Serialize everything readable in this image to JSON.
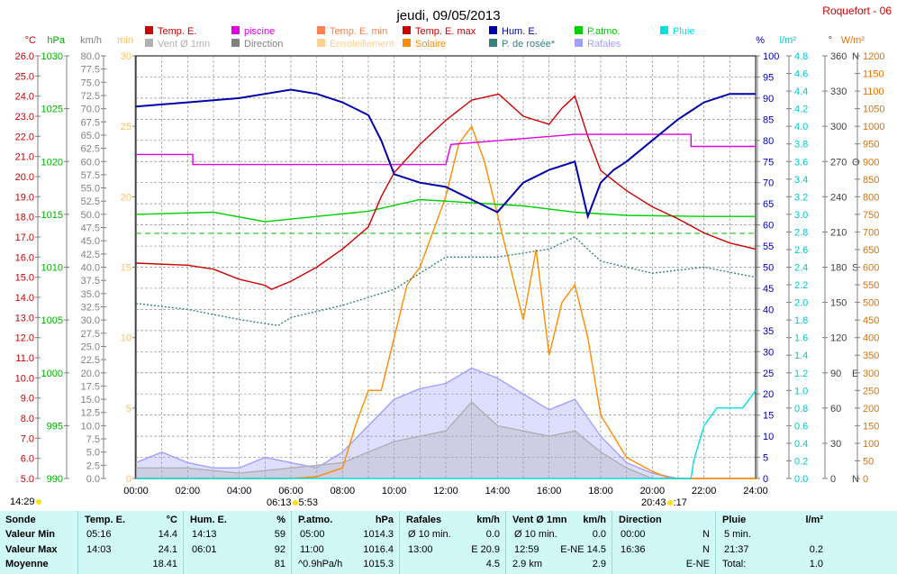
{
  "station": "Roquefort - 06",
  "chart_data": {
    "type": "line",
    "title": "jeudi, 09/05/2013",
    "x_ticks": [
      "00:00",
      "02:00",
      "04:00",
      "06:00",
      "08:00",
      "10:00",
      "12:00",
      "14:00",
      "16:00",
      "18:00",
      "20:00",
      "22:00",
      "24:00"
    ],
    "xlim": [
      0,
      24
    ],
    "grid": true,
    "legend_position": "top",
    "legend": [
      {
        "name": "Temp. E.",
        "color": "#cc0000"
      },
      {
        "name": "piscine",
        "color": "#e000e0"
      },
      {
        "name": "Temp. E. min",
        "color": "#ff7f50"
      },
      {
        "name": "Temp. E. max",
        "color": "#cc0000"
      },
      {
        "name": "Hum. E.",
        "color": "#0000aa"
      },
      {
        "name": "P.atmo.",
        "color": "#00d000"
      },
      {
        "name": "Pluie",
        "color": "#00e0e0"
      },
      {
        "name": "Vent Ø 1mn",
        "color": "#b0b0b0"
      },
      {
        "name": "Direction",
        "color": "#808080"
      },
      {
        "name": "Ensoleillement",
        "color": "#ffd090"
      },
      {
        "name": "Solaire",
        "color": "#ff8c00"
      },
      {
        "name": "P. de rosée*",
        "color": "#3a8080"
      },
      {
        "name": "Rafales",
        "color": "#a0a0ff"
      }
    ],
    "axes": [
      {
        "unit": "°C",
        "color": "#cc0000",
        "range": [
          5,
          26
        ],
        "ticks": [
          "5.0",
          "6.0",
          "7.0",
          "8.0",
          "9.0",
          "10.0",
          "11.0",
          "12.0",
          "13.0",
          "14.0",
          "15.0",
          "16.0",
          "17.0",
          "18.0",
          "19.0",
          "20.0",
          "21.0",
          "22.0",
          "23.0",
          "24.0",
          "25.0",
          "26.0"
        ]
      },
      {
        "unit": "hPa",
        "color": "#00b000",
        "range": [
          990,
          1030
        ],
        "ticks": [
          "990",
          "995",
          "1000",
          "1005",
          "1010",
          "1015",
          "1020",
          "1025",
          "1030"
        ]
      },
      {
        "unit": "km/h",
        "color": "#808080",
        "range": [
          0,
          80
        ],
        "ticks": [
          "0.0",
          "2.5",
          "5.0",
          "7.5",
          "10.0",
          "12.5",
          "15.0",
          "17.5",
          "20.0",
          "22.5",
          "25.0",
          "27.5",
          "30.0",
          "32.5",
          "35.0",
          "37.5",
          "40.0",
          "42.5",
          "45.0",
          "47.5",
          "50.0",
          "52.5",
          "55.0",
          "57.5",
          "60.0",
          "62.5",
          "65.0",
          "67.5",
          "70.0",
          "72.5",
          "75.0",
          "77.5",
          "80.0"
        ]
      },
      {
        "unit": "min",
        "color": "#ffc060",
        "range": [
          0,
          30
        ],
        "ticks": [
          "0",
          "5",
          "10",
          "15",
          "20",
          "25",
          "30"
        ]
      },
      {
        "unit": "%",
        "color": "#0000aa",
        "range": [
          0,
          100
        ],
        "ticks": [
          "0",
          "5",
          "10",
          "15",
          "20",
          "25",
          "30",
          "35",
          "40",
          "45",
          "50",
          "55",
          "60",
          "65",
          "70",
          "75",
          "80",
          "85",
          "90",
          "95",
          "100"
        ]
      },
      {
        "unit": "l/m²",
        "color": "#00c8c8",
        "range": [
          0,
          4.8
        ],
        "ticks": [
          "0.0",
          "0.2",
          "0.4",
          "0.6",
          "0.8",
          "1.0",
          "1.2",
          "1.4",
          "1.6",
          "1.8",
          "2.0",
          "2.2",
          "2.4",
          "2.6",
          "2.8",
          "3.0",
          "3.2",
          "3.4",
          "3.6",
          "3.8",
          "4.0",
          "4.2",
          "4.4",
          "4.6",
          "4.8"
        ]
      },
      {
        "unit": "°",
        "color": "#404040",
        "range": [
          0,
          360
        ],
        "ticks": [
          "0",
          "30",
          "60",
          "90",
          "120",
          "150",
          "180",
          "210",
          "240",
          "270",
          "300",
          "330",
          "360"
        ],
        "compass": {
          "0": "N",
          "90": "E",
          "180": "S",
          "270": "O",
          "360": "N"
        }
      },
      {
        "unit": "W/m²",
        "color": "#e07000",
        "range": [
          0,
          1200
        ],
        "ticks": [
          "0",
          "50",
          "100",
          "150",
          "200",
          "250",
          "300",
          "350",
          "400",
          "450",
          "500",
          "550",
          "600",
          "650",
          "700",
          "750",
          "800",
          "850",
          "900",
          "950",
          "1000",
          "1050",
          "1100",
          "1150",
          "1200"
        ]
      }
    ],
    "series": [
      {
        "name": "Temp. E.",
        "axis": "°C",
        "color": "#cc0000",
        "points": [
          [
            0,
            15.7
          ],
          [
            2,
            15.6
          ],
          [
            3,
            15.4
          ],
          [
            4,
            14.9
          ],
          [
            5,
            14.6
          ],
          [
            5.25,
            14.4
          ],
          [
            6,
            14.8
          ],
          [
            7,
            15.5
          ],
          [
            8,
            16.4
          ],
          [
            9,
            17.5
          ],
          [
            9.5,
            19
          ],
          [
            10,
            20.2
          ],
          [
            11,
            21.6
          ],
          [
            12,
            22.8
          ],
          [
            13,
            23.8
          ],
          [
            14.05,
            24.1
          ],
          [
            15,
            23
          ],
          [
            16,
            22.6
          ],
          [
            16.5,
            23.4
          ],
          [
            17,
            24
          ],
          [
            17.5,
            22
          ],
          [
            18,
            20.3
          ],
          [
            19,
            19.3
          ],
          [
            20,
            18.5
          ],
          [
            21,
            17.9
          ],
          [
            22,
            17.2
          ],
          [
            23,
            16.7
          ],
          [
            24,
            16.4
          ]
        ]
      },
      {
        "name": "piscine",
        "axis": "°C",
        "color": "#e000e0",
        "points": [
          [
            0,
            21.1
          ],
          [
            2.2,
            21.1
          ],
          [
            2.2,
            20.6
          ],
          [
            8.5,
            20.6
          ],
          [
            12,
            20.6
          ],
          [
            12.2,
            21.6
          ],
          [
            17,
            22.1
          ],
          [
            21.5,
            22.1
          ],
          [
            21.5,
            21.5
          ],
          [
            24,
            21.5
          ]
        ]
      },
      {
        "name": "Hum. E.",
        "axis": "%",
        "color": "#0000aa",
        "points": [
          [
            0,
            88
          ],
          [
            1,
            88.5
          ],
          [
            2,
            89
          ],
          [
            3,
            89.5
          ],
          [
            4,
            90
          ],
          [
            5,
            91
          ],
          [
            6,
            92
          ],
          [
            7,
            91
          ],
          [
            8,
            89
          ],
          [
            9,
            86
          ],
          [
            9.5,
            80
          ],
          [
            10,
            72
          ],
          [
            11,
            70
          ],
          [
            12,
            69
          ],
          [
            13,
            66
          ],
          [
            14,
            63
          ],
          [
            15,
            70
          ],
          [
            16,
            73
          ],
          [
            17,
            75
          ],
          [
            17.5,
            62
          ],
          [
            18,
            70
          ],
          [
            18.5,
            73
          ],
          [
            19,
            75
          ],
          [
            20,
            80
          ],
          [
            21,
            85
          ],
          [
            22,
            89
          ],
          [
            23,
            91
          ],
          [
            24,
            91
          ]
        ]
      },
      {
        "name": "P.atmo.",
        "axis": "hPa",
        "color": "#00d000",
        "points": [
          [
            0,
            1015
          ],
          [
            3,
            1015.2
          ],
          [
            5,
            1014.3
          ],
          [
            7,
            1014.8
          ],
          [
            9,
            1015.3
          ],
          [
            11,
            1016.4
          ],
          [
            13,
            1016.1
          ],
          [
            15,
            1015.8
          ],
          [
            17,
            1015.2
          ],
          [
            19,
            1014.9
          ],
          [
            22,
            1014.8
          ],
          [
            24,
            1014.8
          ]
        ]
      },
      {
        "name": "P. de rosée*",
        "axis": "°C",
        "color": "#3a8080",
        "points": [
          [
            0,
            13.7
          ],
          [
            2,
            13.4
          ],
          [
            4,
            12.9
          ],
          [
            5.5,
            12.6
          ],
          [
            6,
            13
          ],
          [
            8,
            13.6
          ],
          [
            10,
            14.4
          ],
          [
            12,
            16
          ],
          [
            14,
            16
          ],
          [
            16,
            16.4
          ],
          [
            17,
            17
          ],
          [
            18,
            15.8
          ],
          [
            20,
            15.2
          ],
          [
            22,
            15.5
          ],
          [
            24,
            15
          ]
        ]
      },
      {
        "name": "Solaire",
        "axis": "W/m²",
        "color": "#ff8c00",
        "points": [
          [
            0,
            0
          ],
          [
            6,
            0
          ],
          [
            7,
            5
          ],
          [
            8,
            30
          ],
          [
            8.5,
            150
          ],
          [
            9,
            250
          ],
          [
            9.5,
            250
          ],
          [
            10,
            400
          ],
          [
            10.5,
            550
          ],
          [
            11,
            600
          ],
          [
            11.5,
            700
          ],
          [
            12,
            800
          ],
          [
            12.5,
            950
          ],
          [
            13,
            1000
          ],
          [
            13.5,
            900
          ],
          [
            14,
            750
          ],
          [
            14.5,
            600
          ],
          [
            15,
            450
          ],
          [
            15.5,
            650
          ],
          [
            16,
            350
          ],
          [
            16.5,
            500
          ],
          [
            17,
            550
          ],
          [
            17.5,
            400
          ],
          [
            18,
            180
          ],
          [
            18.5,
            120
          ],
          [
            19,
            60
          ],
          [
            20,
            20
          ],
          [
            20.7,
            0
          ],
          [
            24,
            0
          ]
        ]
      },
      {
        "name": "Rafales",
        "axis": "km/h",
        "color": "#a0a0ff",
        "points": [
          [
            0,
            3
          ],
          [
            1,
            5
          ],
          [
            2,
            3
          ],
          [
            3,
            2
          ],
          [
            4,
            2
          ],
          [
            5,
            4
          ],
          [
            6,
            3
          ],
          [
            7,
            2
          ],
          [
            8,
            5
          ],
          [
            9,
            10
          ],
          [
            10,
            15
          ],
          [
            11,
            17
          ],
          [
            12,
            18
          ],
          [
            13,
            20.9
          ],
          [
            14,
            19
          ],
          [
            15,
            16
          ],
          [
            16,
            13
          ],
          [
            17,
            15
          ],
          [
            18,
            8
          ],
          [
            19,
            3
          ],
          [
            20,
            1
          ],
          [
            21,
            0
          ],
          [
            24,
            0
          ]
        ]
      },
      {
        "name": "Vent Ø 1mn",
        "axis": "km/h",
        "color": "#b0b0b0",
        "points": [
          [
            0,
            2
          ],
          [
            2,
            2
          ],
          [
            4,
            1
          ],
          [
            6,
            2
          ],
          [
            8,
            3
          ],
          [
            10,
            7
          ],
          [
            12,
            9
          ],
          [
            13,
            14.5
          ],
          [
            14,
            10
          ],
          [
            16,
            8
          ],
          [
            17,
            9
          ],
          [
            18,
            5
          ],
          [
            19,
            2
          ],
          [
            20,
            0
          ],
          [
            24,
            0
          ]
        ]
      },
      {
        "name": "Pluie",
        "axis": "l/m²",
        "color": "#00e0e0",
        "points": [
          [
            0,
            0
          ],
          [
            21.5,
            0
          ],
          [
            21.6,
            0.2
          ],
          [
            22,
            0.6
          ],
          [
            22.5,
            0.8
          ],
          [
            23.5,
            0.8
          ],
          [
            24,
            1
          ]
        ]
      }
    ],
    "marks": [
      {
        "label": "14:29"
      },
      {
        "label": "06:13"
      },
      {
        "label": "5:53"
      },
      {
        "label": "20:43"
      },
      {
        "label": ":17"
      }
    ]
  },
  "table": {
    "rows": [
      "Sonde",
      "Valeur Min",
      "Valeur Max",
      "Moyenne"
    ],
    "columns": [
      {
        "title": "Temp. E.",
        "unit": "°C",
        "min_time": "05:16",
        "min_val": "14.4",
        "max_time": "14:03",
        "max_val": "24.1",
        "avg": "18.41"
      },
      {
        "title": "Hum. E.",
        "unit": "%",
        "min_time": "14:13",
        "min_val": "59",
        "max_time": "06:01",
        "max_val": "92",
        "avg": "81"
      },
      {
        "title": "P.atmo.",
        "unit": "hPa",
        "min_time": "05:00",
        "min_val": "1014.3",
        "max_time": "11:00",
        "max_val": "1016.4",
        "avg_label": "^0.9hPa/h",
        "avg": "1015.3"
      },
      {
        "title": "Rafales",
        "unit": "km/h",
        "min_time": "Ø 10 min.",
        "min_val": "0.0",
        "max_time": "13:00",
        "max_val": "E 20.9",
        "avg": "4.5"
      },
      {
        "title": "Vent Ø 1mn",
        "unit": "km/h",
        "min_time": "Ø 10 min.",
        "min_val": "0.0",
        "max_time": "12:59",
        "max_val": "E-NE 14.5",
        "avg_label": "2.9 km",
        "avg": "2.9"
      },
      {
        "title": "Direction",
        "unit": "",
        "min_time": "00:00",
        "min_val": "N",
        "max_time": "16:36",
        "max_val": "N",
        "avg": "E-NE"
      },
      {
        "title": "Pluie",
        "unit": "l/m²",
        "min_time": "5 min.",
        "min_val": "",
        "max_time": "21:37",
        "max_val": "0.2",
        "avg_label": "Total:",
        "avg": "1.0"
      }
    ]
  }
}
